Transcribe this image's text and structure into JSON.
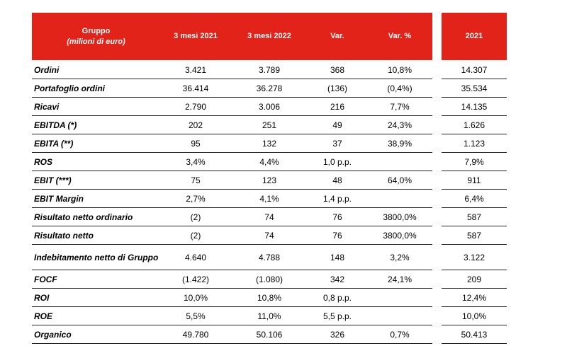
{
  "header": {
    "group_label": "Gruppo",
    "group_sub": "(milioni di euro)",
    "col_2021_q": "3 mesi 2021",
    "col_2022_q": "3 mesi 2022",
    "col_var": "Var.",
    "col_var_pct": "Var. %",
    "col_year": "2021"
  },
  "rows": [
    {
      "label": "Ordini",
      "v2021": "3.421",
      "v2022": "3.789",
      "var": "368",
      "pct": "10,8%",
      "year": "14.307"
    },
    {
      "label": "Portafoglio ordini",
      "v2021": "36.414",
      "v2022": "36.278",
      "var": "(136)",
      "pct": "(0,4%)",
      "year": "35.534"
    },
    {
      "label": "Ricavi",
      "v2021": "2.790",
      "v2022": "3.006",
      "var": "216",
      "pct": "7,7%",
      "year": "14.135"
    },
    {
      "label": "EBITDA (*)",
      "v2021": "202",
      "v2022": "251",
      "var": "49",
      "pct": "24,3%",
      "year": "1.626"
    },
    {
      "label": "EBITA (**)",
      "v2021": "95",
      "v2022": "132",
      "var": "37",
      "pct": "38,9%",
      "year": "1.123"
    },
    {
      "label": "ROS",
      "v2021": "3,4%",
      "v2022": "4,4%",
      "var": "1,0 p.p.",
      "pct": "",
      "year": "7,9%"
    },
    {
      "label": "EBIT (***)",
      "v2021": "75",
      "v2022": "123",
      "var": "48",
      "pct": "64,0%",
      "year": "911"
    },
    {
      "label": "EBIT Margin",
      "v2021": "2,7%",
      "v2022": "4,1%",
      "var": "1,4 p.p.",
      "pct": "",
      "year": "6,4%"
    },
    {
      "label": "Risultato netto ordinario",
      "v2021": "(2)",
      "v2022": "74",
      "var": "76",
      "pct": "3800,0%",
      "year": "587"
    },
    {
      "label": "Risultato netto",
      "v2021": "(2)",
      "v2022": "74",
      "var": "76",
      "pct": "3800,0%",
      "year": "587"
    },
    {
      "label": "Indebitamento netto di Gruppo",
      "v2021": "4.640",
      "v2022": "4.788",
      "var": "148",
      "pct": "3,2%",
      "year": "3.122"
    },
    {
      "label": "FOCF",
      "v2021": "(1.422)",
      "v2022": "(1.080)",
      "var": "342",
      "pct": "24,1%",
      "year": "209"
    },
    {
      "label": "ROI",
      "v2021": "10,0%",
      "v2022": "10,8%",
      "var": "0,8 p.p.",
      "pct": "",
      "year": "12,4%"
    },
    {
      "label": "ROE",
      "v2021": "5,5%",
      "v2022": "11,0%",
      "var": "5,5 p.p.",
      "pct": "",
      "year": "10,0%"
    },
    {
      "label": "Organico",
      "v2021": "49.780",
      "v2022": "50.106",
      "var": "326",
      "pct": "0,7%",
      "year": "50.413"
    }
  ]
}
